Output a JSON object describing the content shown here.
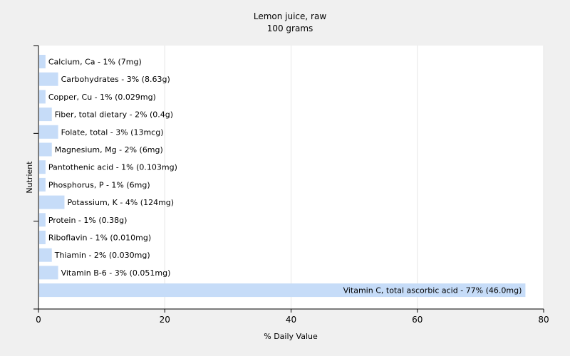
{
  "chart_data": {
    "type": "bar",
    "orientation": "horizontal",
    "title": "Lemon juice, raw",
    "subtitle": "100 grams",
    "xlabel": "% Daily Value",
    "ylabel": "Nutrient",
    "xlim": [
      0,
      80
    ],
    "x_ticks": [
      0,
      20,
      40,
      60,
      80
    ],
    "grid": true,
    "bar_color": "#c6dcf8",
    "background": "#f0f0f0",
    "plot_background": "#ffffff",
    "categories": [
      "Calcium, Ca",
      "Carbohydrates",
      "Copper, Cu",
      "Fiber, total dietary",
      "Folate, total",
      "Magnesium, Mg",
      "Pantothenic acid",
      "Phosphorus, P",
      "Potassium, K",
      "Protein",
      "Riboflavin",
      "Thiamin",
      "Vitamin B-6",
      "Vitamin C, total ascorbic acid"
    ],
    "values": [
      1,
      3,
      1,
      2,
      3,
      2,
      1,
      1,
      4,
      1,
      1,
      2,
      3,
      77
    ],
    "labels": [
      "Calcium, Ca - 1% (7mg)",
      "Carbohydrates - 3% (8.63g)",
      "Copper, Cu - 1% (0.029mg)",
      "Fiber, total dietary - 2% (0.4g)",
      "Folate, total - 3% (13mcg)",
      "Magnesium, Mg - 2% (6mg)",
      "Pantothenic acid - 1% (0.103mg)",
      "Phosphorus, P - 1% (6mg)",
      "Potassium, K - 4% (124mg)",
      "Protein - 1% (0.38g)",
      "Riboflavin - 1% (0.010mg)",
      "Thiamin - 2% (0.030mg)",
      "Vitamin B-6 - 3% (0.051mg)",
      "Vitamin C, total ascorbic acid - 77% (46.0mg)"
    ]
  }
}
